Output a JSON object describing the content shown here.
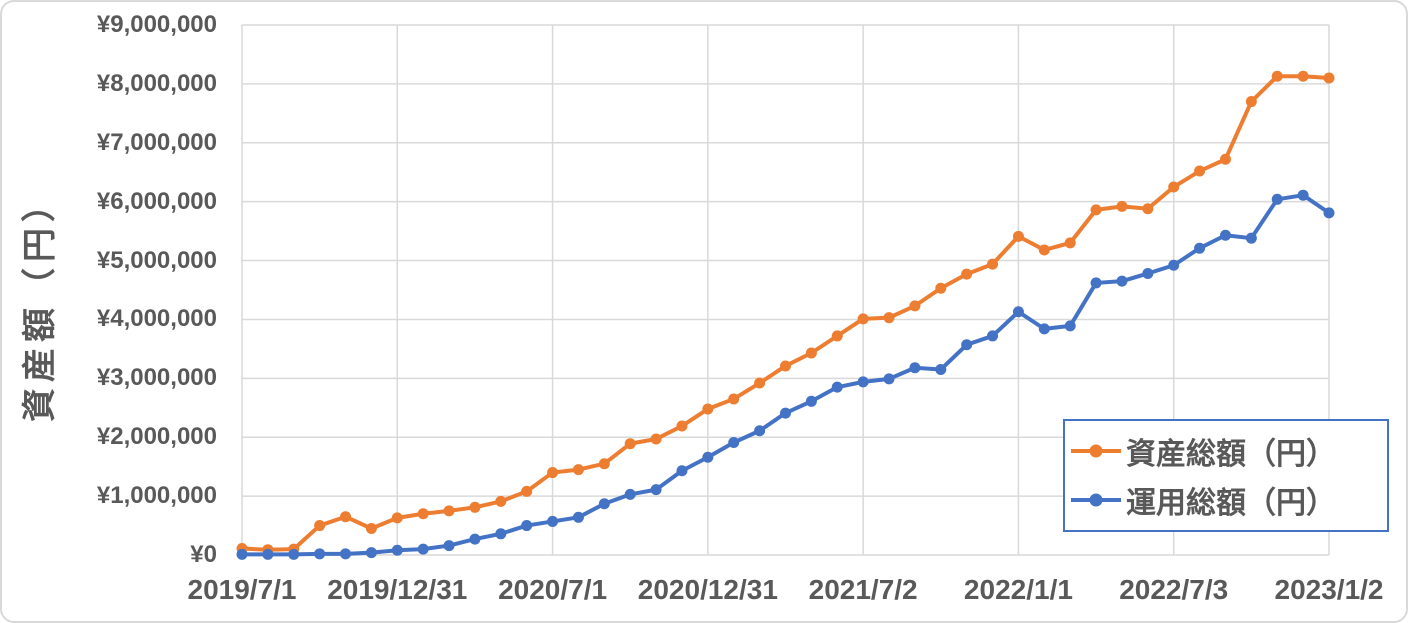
{
  "chart_data": {
    "type": "line",
    "title": "",
    "y_axis_title": "資産額（円）",
    "ylabel": "資産額（円）",
    "xlabel": "",
    "ylim": [
      0,
      9000000
    ],
    "y_tick_step": 1000000,
    "y_tick_labels": [
      "¥0",
      "¥1,000,000",
      "¥2,000,000",
      "¥3,000,000",
      "¥4,000,000",
      "¥5,000,000",
      "¥6,000,000",
      "¥7,000,000",
      "¥8,000,000",
      "¥9,000,000"
    ],
    "x_tick_labels": [
      "2019/7/1",
      "2019/12/31",
      "2020/7/1",
      "2020/12/31",
      "2021/7/2",
      "2022/1/1",
      "2022/7/3",
      "2023/1/2"
    ],
    "x_tick_positions": [
      0,
      6,
      12,
      18,
      24,
      30,
      36,
      42
    ],
    "x_range": [
      0,
      42
    ],
    "points_per_series": 43,
    "grid": true,
    "legend_position": "inside-bottom-right",
    "series": [
      {
        "name": "資産総額（円）",
        "color": "#ED7D31",
        "values": [
          110000,
          90000,
          100000,
          500000,
          650000,
          450000,
          630000,
          700000,
          750000,
          810000,
          910000,
          1080000,
          1400000,
          1450000,
          1550000,
          1890000,
          1970000,
          2190000,
          2480000,
          2650000,
          2920000,
          3210000,
          3430000,
          3720000,
          4010000,
          4030000,
          4230000,
          4530000,
          4770000,
          4940000,
          5410000,
          5180000,
          5300000,
          5860000,
          5920000,
          5880000,
          6250000,
          6520000,
          6720000,
          7700000,
          8130000,
          8130000,
          8100000
        ]
      },
      {
        "name": "運用総額（円）",
        "color": "#4472C4",
        "values": [
          10000,
          10000,
          10000,
          20000,
          20000,
          40000,
          80000,
          100000,
          160000,
          270000,
          360000,
          500000,
          570000,
          640000,
          870000,
          1030000,
          1110000,
          1430000,
          1660000,
          1910000,
          2110000,
          2410000,
          2610000,
          2850000,
          2940000,
          2990000,
          3180000,
          3150000,
          3570000,
          3720000,
          4130000,
          3840000,
          3890000,
          4620000,
          4650000,
          4780000,
          4920000,
          5210000,
          5430000,
          5380000,
          6040000,
          6110000,
          5810000
        ]
      }
    ],
    "colors": {
      "gridline": "#D9D9D9",
      "axis_text": "#595959",
      "legend_border": "#4472C4",
      "background": "#FFFFFF",
      "series_1": "#ED7D31",
      "series_2": "#4472C4"
    }
  }
}
